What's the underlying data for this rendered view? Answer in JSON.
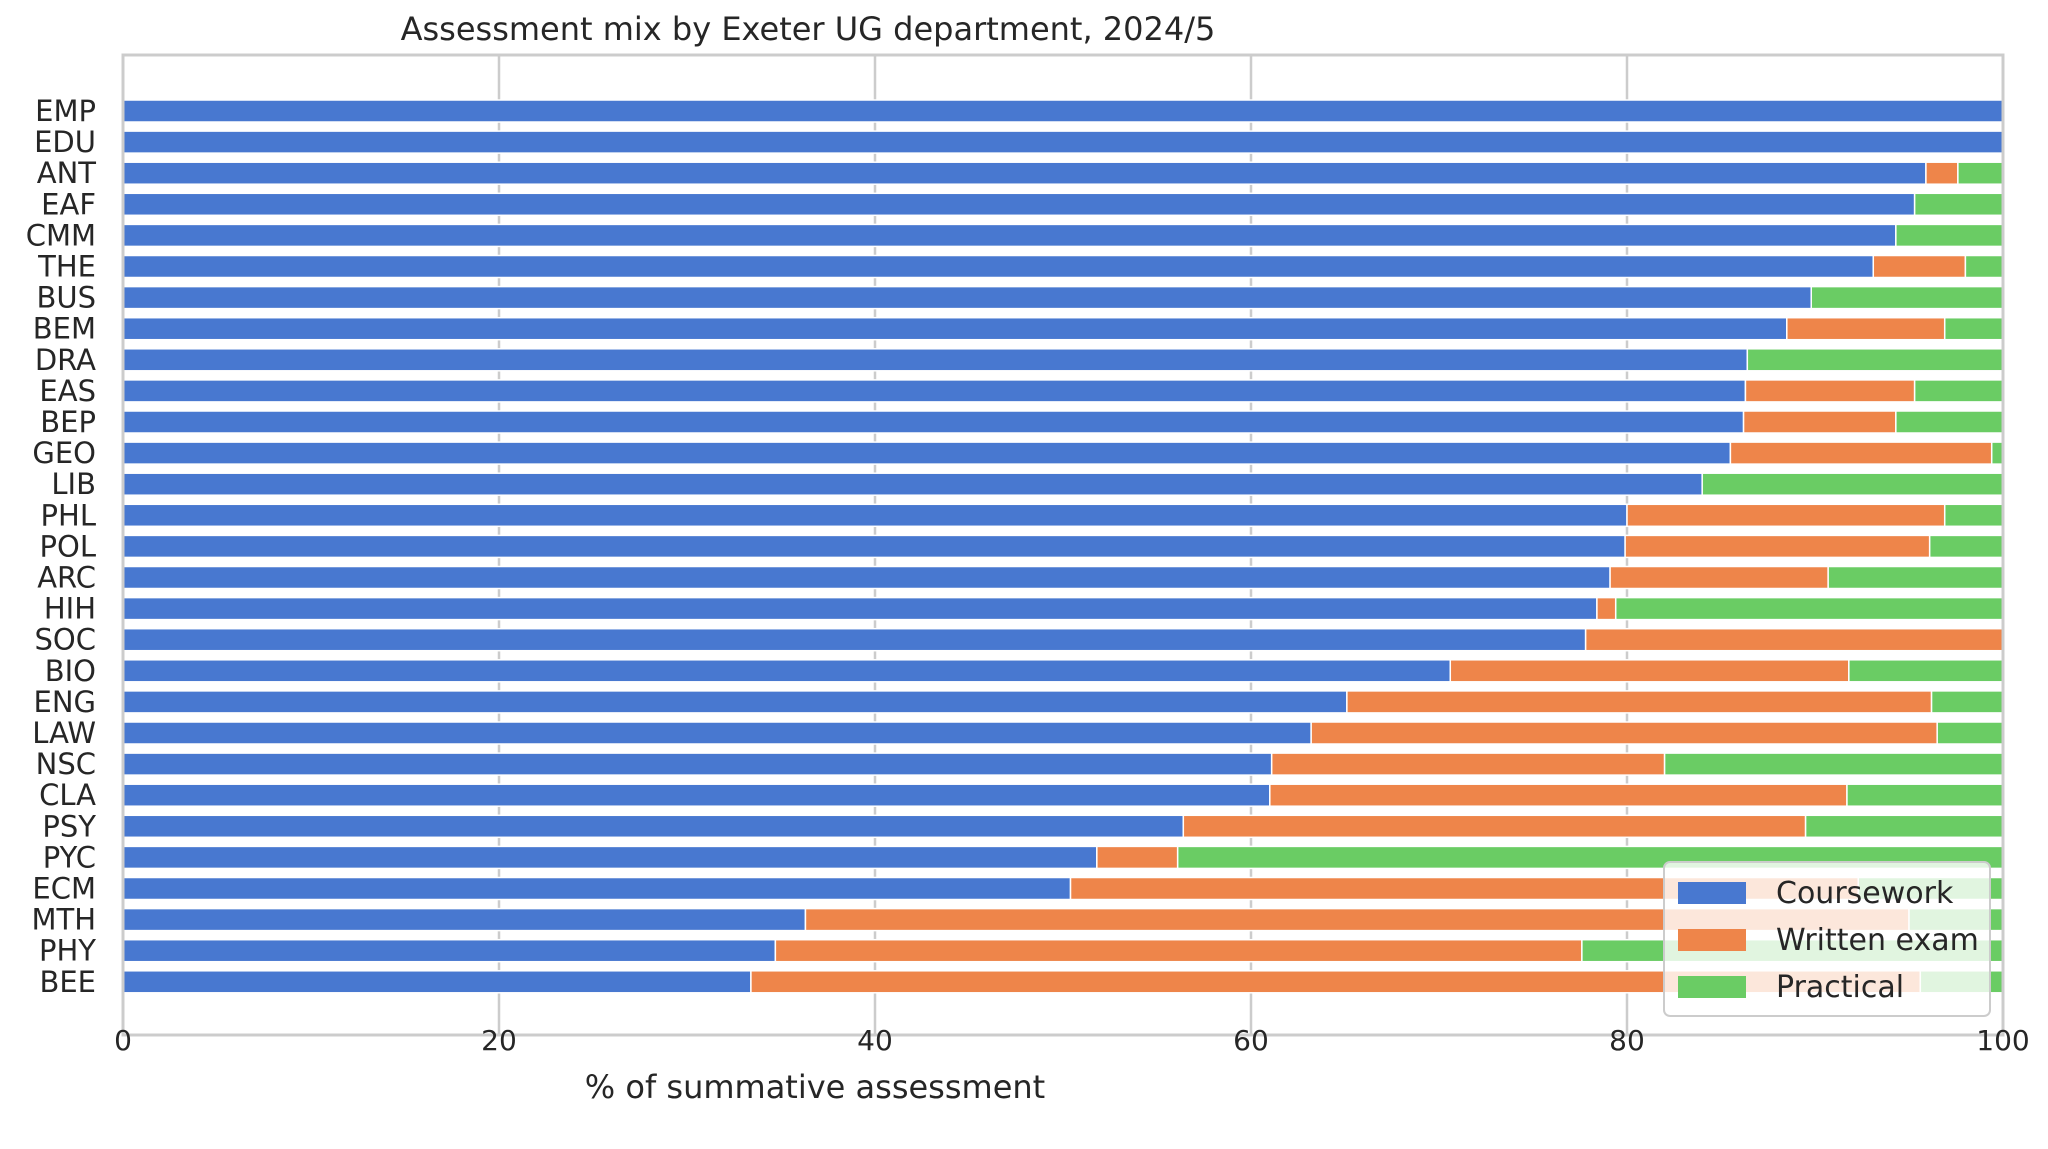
{
  "chart_data": {
    "type": "bar",
    "orientation": "horizontal",
    "stacked": true,
    "title": "Assessment mix by Exeter UG department, 2024/5",
    "xlabel": "% of summative assessment",
    "ylabel": "",
    "xlim": [
      0,
      100
    ],
    "xticks": [
      0,
      20,
      40,
      60,
      80,
      100
    ],
    "grid": true,
    "legend_position": "bottom-right",
    "categories": [
      "EMP",
      "EDU",
      "ANT",
      "EAF",
      "CMM",
      "THE",
      "BUS",
      "BEM",
      "DRA",
      "EAS",
      "BEP",
      "GEO",
      "LIB",
      "PHL",
      "POL",
      "ARC",
      "HIH",
      "SOC",
      "BIO",
      "ENG",
      "LAW",
      "NSC",
      "CLA",
      "PSY",
      "PYC",
      "ECM",
      "MTH",
      "PHY",
      "BEE"
    ],
    "series": [
      {
        "name": "Coursework",
        "color": "#4878d0",
        "values": [
          100,
          100,
          95.9,
          95.3,
          94.3,
          93.1,
          89.8,
          88.5,
          86.4,
          86.3,
          86.2,
          85.5,
          84.0,
          80.0,
          79.9,
          79.1,
          78.4,
          77.8,
          70.6,
          65.1,
          63.2,
          61.1,
          61.0,
          56.4,
          51.8,
          50.4,
          36.3,
          34.7,
          33.4
        ]
      },
      {
        "name": "Written exam",
        "color": "#ee854a",
        "values": [
          0,
          0,
          1.7,
          0,
          0,
          4.9,
          0,
          8.4,
          0,
          9.0,
          8.1,
          13.9,
          0,
          16.9,
          16.2,
          11.6,
          1.0,
          22.2,
          21.2,
          31.1,
          33.3,
          20.9,
          30.7,
          33.1,
          4.3,
          41.9,
          58.7,
          42.9,
          62.2
        ]
      },
      {
        "name": "Practical",
        "color": "#6acc64",
        "values": [
          0,
          0,
          2.4,
          4.7,
          5.7,
          2.0,
          10.2,
          3.1,
          13.6,
          4.7,
          5.7,
          0.6,
          16.0,
          3.1,
          3.9,
          9.3,
          20.6,
          0,
          8.2,
          3.8,
          3.5,
          18.0,
          8.3,
          10.5,
          43.9,
          7.7,
          5.0,
          22.4,
          4.4
        ]
      }
    ]
  }
}
